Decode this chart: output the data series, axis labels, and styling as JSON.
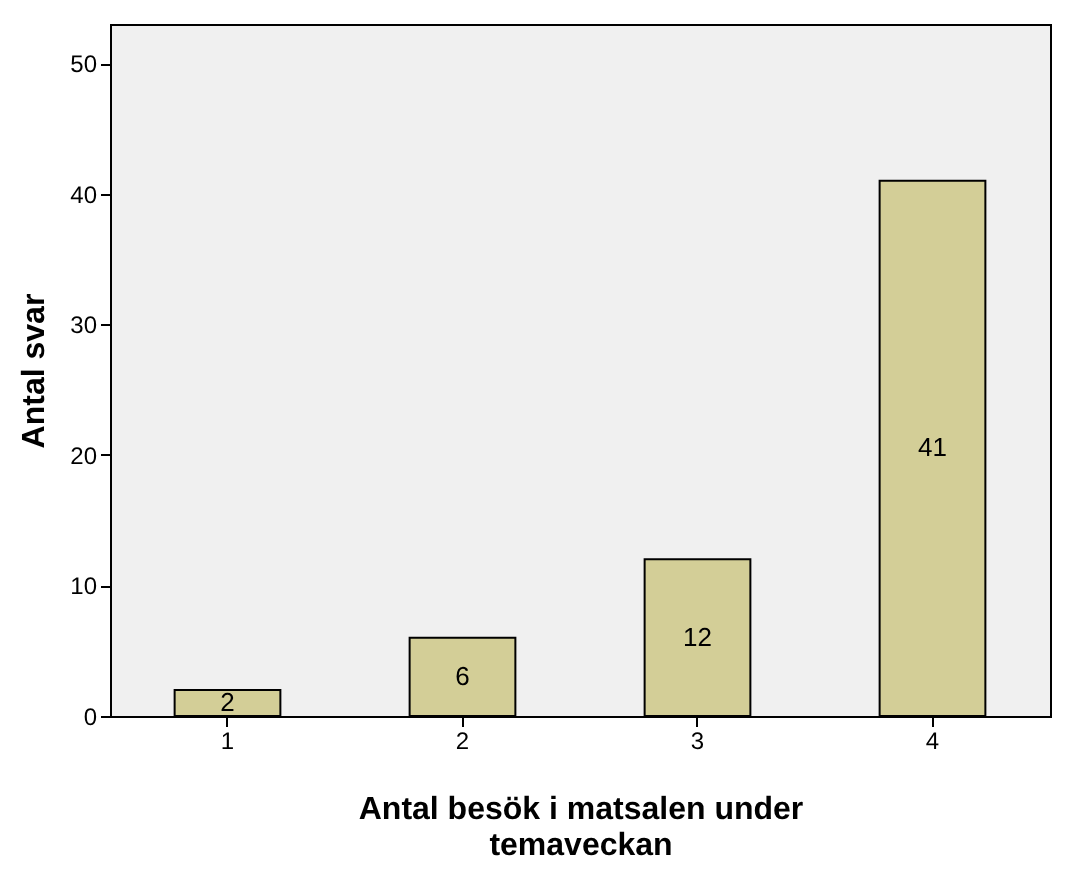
{
  "chart_data": {
    "type": "bar",
    "xlabel": "Antal besök i matsalen under temaveckan",
    "ylabel": "Antal svar",
    "categories": [
      "1",
      "2",
      "3",
      "4"
    ],
    "values": [
      2,
      6,
      12,
      41
    ],
    "color": "#d3ce97",
    "ylim": [
      0,
      53
    ],
    "yticks": [
      0,
      10,
      20,
      30,
      40,
      50
    ],
    "grid": false,
    "data_labels": true
  }
}
